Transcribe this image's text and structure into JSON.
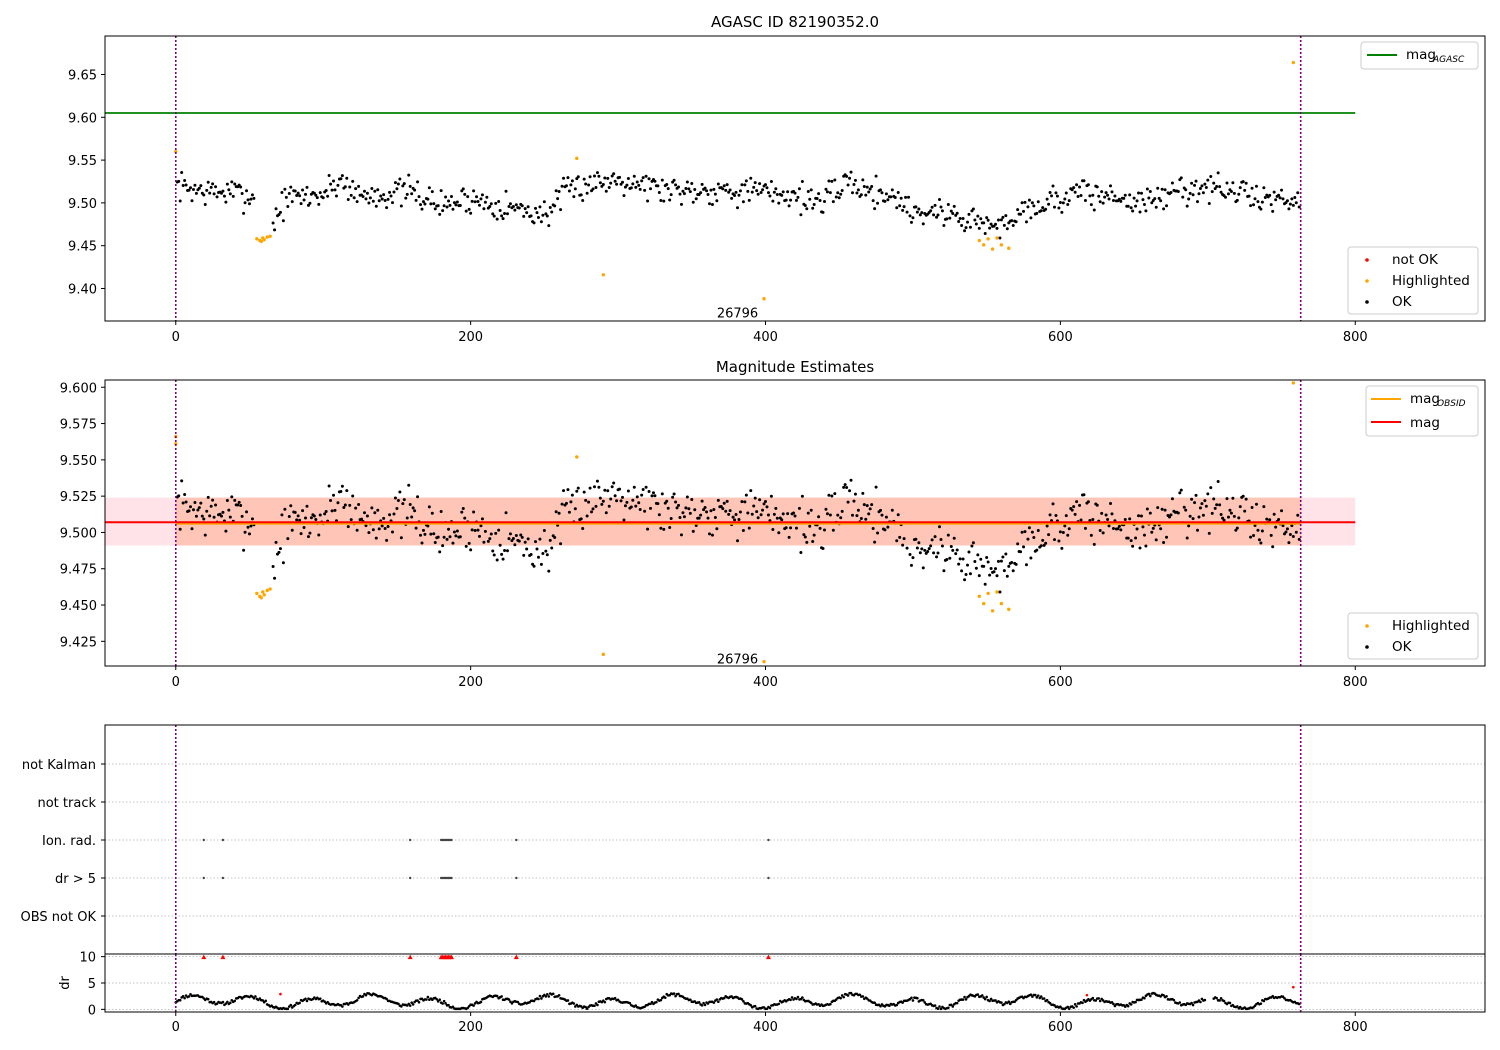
{
  "chart_data": [
    {
      "type": "scatter",
      "title": "AGASC ID 82190352.0",
      "xlim": [
        -48,
        888
      ],
      "ylim": [
        9.362,
        9.695
      ],
      "xticks": [
        0,
        200,
        400,
        600,
        800
      ],
      "yticks": [
        9.4,
        9.45,
        9.5,
        9.55,
        9.6,
        9.65
      ],
      "ytick_labels": [
        "9.40",
        "9.45",
        "9.50",
        "9.55",
        "9.60",
        "9.65"
      ],
      "lines": [
        {
          "name": "mag",
          "name_sub": "AGASC",
          "y": 9.605,
          "x_range": [
            -48,
            800
          ],
          "color": "#008000"
        }
      ],
      "vlines": [
        0,
        763
      ],
      "annotation": {
        "text": "26796",
        "x": 381,
        "y": 9.372
      },
      "legend_lines": {
        "placement": "top-right",
        "entries": [
          {
            "name": "mag",
            "sub": "AGASC",
            "color": "#008000"
          }
        ]
      },
      "legend_points": {
        "placement": "bottom-right",
        "entries": [
          {
            "name": "not OK",
            "color": "#ff0000"
          },
          {
            "name": "Highlighted",
            "color": "#ffa500"
          },
          {
            "name": "OK",
            "color": "#000000"
          }
        ]
      },
      "series": [
        {
          "name": "Highlighted",
          "color": "#ffa500",
          "points": [
            [
              0,
              9.56
            ],
            [
              55,
              9.458
            ],
            [
              57,
              9.456
            ],
            [
              58,
              9.455
            ],
            [
              59,
              9.459
            ],
            [
              60,
              9.457
            ],
            [
              62,
              9.46
            ],
            [
              64,
              9.461
            ],
            [
              272,
              9.552
            ],
            [
              290,
              9.416
            ],
            [
              399,
              9.388
            ],
            [
              545,
              9.456
            ],
            [
              548,
              9.451
            ],
            [
              551,
              9.458
            ],
            [
              554,
              9.446
            ],
            [
              557,
              9.459
            ],
            [
              560,
              9.451
            ],
            [
              565,
              9.447
            ],
            [
              758,
              9.664
            ]
          ]
        }
      ],
      "ok_profile": {
        "x_range": [
          1,
          762
        ],
        "x_step": 1,
        "scatter": 0.012,
        "seed": 7,
        "skip": [
          [
            54,
            65
          ]
        ],
        "knots": [
          [
            1,
            9.52
          ],
          [
            20,
            9.513
          ],
          [
            40,
            9.512
          ],
          [
            55,
            9.505
          ],
          [
            60,
            9.478
          ],
          [
            66,
            9.478
          ],
          [
            75,
            9.505
          ],
          [
            100,
            9.51
          ],
          [
            112,
            9.527
          ],
          [
            125,
            9.508
          ],
          [
            160,
            9.513
          ],
          [
            180,
            9.497
          ],
          [
            200,
            9.505
          ],
          [
            240,
            9.49
          ],
          [
            250,
            9.486
          ],
          [
            265,
            9.512
          ],
          [
            280,
            9.524
          ],
          [
            290,
            9.524
          ],
          [
            300,
            9.53
          ],
          [
            330,
            9.516
          ],
          [
            380,
            9.515
          ],
          [
            420,
            9.509
          ],
          [
            440,
            9.5
          ],
          [
            455,
            9.527
          ],
          [
            470,
            9.513
          ],
          [
            485,
            9.51
          ],
          [
            500,
            9.49
          ],
          [
            520,
            9.489
          ],
          [
            540,
            9.48
          ],
          [
            560,
            9.47
          ],
          [
            570,
            9.49
          ],
          [
            600,
            9.505
          ],
          [
            610,
            9.512
          ],
          [
            640,
            9.506
          ],
          [
            660,
            9.5
          ],
          [
            680,
            9.515
          ],
          [
            700,
            9.518
          ],
          [
            720,
            9.512
          ],
          [
            740,
            9.505
          ],
          [
            762,
            9.505
          ]
        ]
      }
    },
    {
      "type": "scatter",
      "title": "Magnitude Estimates",
      "xlim": [
        -48,
        888
      ],
      "ylim": [
        9.408,
        9.605
      ],
      "xticks": [
        0,
        200,
        400,
        600,
        800
      ],
      "yticks": [
        9.425,
        9.45,
        9.475,
        9.5,
        9.525,
        9.55,
        9.575,
        9.6
      ],
      "ytick_labels": [
        "9.425",
        "9.450",
        "9.475",
        "9.500",
        "9.525",
        "9.550",
        "9.575",
        "9.600"
      ],
      "lines": [
        {
          "name": "mag",
          "name_sub": "OBSID",
          "y": 9.506,
          "x_range": [
            0,
            763
          ],
          "color": "#ffa500"
        },
        {
          "name": "mag",
          "y": 9.507,
          "x_range": [
            -48,
            800
          ],
          "color": "#ff0000"
        }
      ],
      "bands": [
        {
          "y": [
            9.491,
            9.524
          ],
          "x_range": [
            -48,
            800
          ],
          "color": "#ffc0cb"
        },
        {
          "y": [
            9.491,
            9.524
          ],
          "x_range": [
            0,
            763
          ],
          "color": "#ffa07a"
        }
      ],
      "vlines": [
        0,
        763
      ],
      "annotation": {
        "text": "26796",
        "x": 381,
        "y": 9.413
      },
      "legend_lines": {
        "placement": "top-right",
        "entries": [
          {
            "name": "mag",
            "sub": "OBSID",
            "color": "#ffa500"
          },
          {
            "name": "mag",
            "color": "#ff0000"
          }
        ]
      },
      "legend_points": {
        "placement": "bottom-right",
        "entries": [
          {
            "name": "Highlighted",
            "color": "#ffa500"
          },
          {
            "name": "OK",
            "color": "#000000"
          }
        ]
      },
      "series": [
        {
          "name": "Highlighted",
          "color": "#ffa500",
          "points": [
            [
              0,
              9.566
            ],
            [
              0,
              9.561
            ],
            [
              55,
              9.458
            ],
            [
              57,
              9.456
            ],
            [
              58,
              9.455
            ],
            [
              59,
              9.459
            ],
            [
              60,
              9.457
            ],
            [
              62,
              9.46
            ],
            [
              64,
              9.461
            ],
            [
              272,
              9.552
            ],
            [
              290,
              9.416
            ],
            [
              399,
              9.411
            ],
            [
              545,
              9.456
            ],
            [
              548,
              9.451
            ],
            [
              551,
              9.458
            ],
            [
              554,
              9.446
            ],
            [
              557,
              9.459
            ],
            [
              560,
              9.451
            ],
            [
              565,
              9.447
            ],
            [
              758,
              9.603
            ]
          ]
        }
      ]
    },
    {
      "type": "scatter",
      "title": "",
      "xlim": [
        -48,
        888
      ],
      "xticks": [
        0,
        200,
        400,
        600,
        800
      ],
      "vlines": [
        0,
        763
      ],
      "categories": [
        "not Kalman",
        "not track",
        "Ion. rad.",
        "dr > 5",
        "OBS not OK"
      ],
      "flags": {
        "Ion. rad.": [
          19,
          32,
          159,
          180,
          181,
          182,
          183,
          184,
          185,
          186,
          187,
          231,
          402
        ],
        "dr > 5": [
          19,
          32,
          159,
          180,
          181,
          182,
          183,
          184,
          185,
          186,
          187,
          231,
          402
        ]
      },
      "dr": {
        "ylabel": "dr",
        "ylim": [
          -0.5,
          10.5
        ],
        "yticks": [
          0,
          5,
          10
        ],
        "ytick_labels": [
          "0",
          "5",
          "10"
        ],
        "outliers": [
          19,
          32,
          159,
          180,
          181,
          182,
          183,
          184,
          185,
          186,
          187,
          231,
          402
        ],
        "red_points": [
          [
            71,
            2.9
          ],
          [
            618,
            2.7
          ],
          [
            758,
            4.2
          ]
        ]
      }
    }
  ]
}
